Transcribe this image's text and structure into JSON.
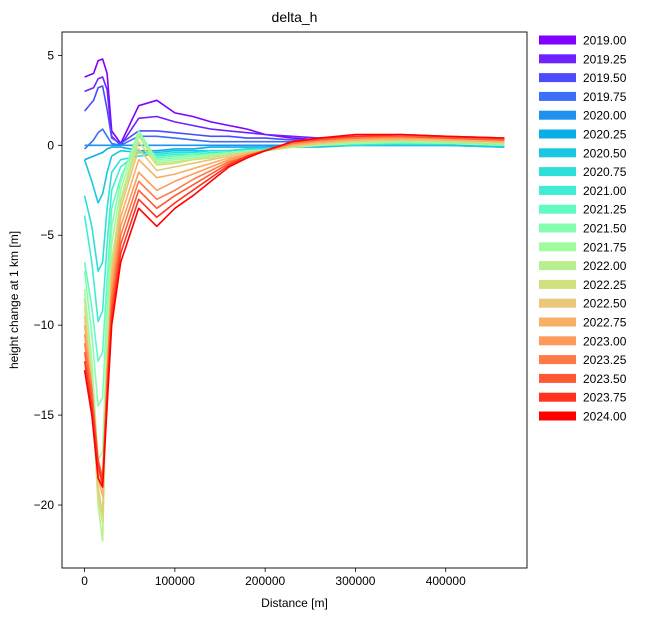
{
  "chart_data": {
    "type": "line",
    "title": "delta_h",
    "xlabel": "Distance [m]",
    "ylabel": "height change at 1 km [m]",
    "xlim": [
      -25000,
      490000
    ],
    "ylim": [
      -23.5,
      6.3
    ],
    "xticks": [
      0,
      100000,
      200000,
      300000,
      400000
    ],
    "xtick_labels": [
      "0",
      "100000",
      "200000",
      "300000",
      "400000"
    ],
    "yticks": [
      5,
      0,
      -5,
      -10,
      -15,
      -20
    ],
    "ytick_labels": [
      "5",
      "0",
      "−5",
      "−10",
      "−15",
      "−20"
    ],
    "grid": false,
    "legend_position": "outside-right",
    "series": [
      {
        "name": "2019.00",
        "color": "#8000ff",
        "x": [
          0,
          10000,
          15000,
          20000,
          25000,
          30000,
          40000,
          60000,
          80000,
          100000,
          120000,
          140000,
          160000,
          180000,
          200000,
          230000,
          260000,
          300000,
          350000,
          400000,
          465000
        ],
        "y": [
          3.8,
          4.0,
          4.7,
          4.8,
          4.0,
          0.8,
          0.1,
          2.2,
          2.5,
          1.8,
          1.6,
          1.3,
          1.1,
          0.9,
          0.6,
          0.4,
          0.3,
          0.4,
          0.5,
          0.4,
          0.3
        ]
      },
      {
        "name": "2019.25",
        "color": "#6e22fe",
        "x": [
          0,
          10000,
          15000,
          20000,
          25000,
          30000,
          40000,
          60000,
          80000,
          100000,
          120000,
          140000,
          160000,
          180000,
          200000,
          230000,
          260000,
          300000,
          350000,
          400000,
          465000
        ],
        "y": [
          3.0,
          3.2,
          3.7,
          3.8,
          3.1,
          0.5,
          0.0,
          1.5,
          1.6,
          1.3,
          1.1,
          0.9,
          0.8,
          0.7,
          0.6,
          0.5,
          0.4,
          0.4,
          0.5,
          0.4,
          0.3
        ]
      },
      {
        "name": "2019.50",
        "color": "#4c4cfd",
        "x": [
          0,
          10000,
          15000,
          20000,
          25000,
          30000,
          40000,
          60000,
          80000,
          100000,
          120000,
          140000,
          160000,
          180000,
          200000,
          230000,
          260000,
          300000,
          350000,
          400000,
          465000
        ],
        "y": [
          1.9,
          2.5,
          3.2,
          3.3,
          2.0,
          0.4,
          0.1,
          0.8,
          0.8,
          0.7,
          0.6,
          0.5,
          0.5,
          0.4,
          0.4,
          0.3,
          0.3,
          0.3,
          0.3,
          0.3,
          0.2
        ]
      },
      {
        "name": "2019.75",
        "color": "#3a70f7",
        "x": [
          0,
          10000,
          15000,
          20000,
          25000,
          30000,
          40000,
          60000,
          80000,
          100000,
          120000,
          140000,
          160000,
          180000,
          200000,
          230000,
          260000,
          300000,
          350000,
          400000,
          465000
        ],
        "y": [
          -0.2,
          0.3,
          0.7,
          0.9,
          0.5,
          0.1,
          0.0,
          0.5,
          0.5,
          0.4,
          0.3,
          0.2,
          0.2,
          0.2,
          0.2,
          0.2,
          0.2,
          0.2,
          0.2,
          0.2,
          0.1
        ]
      },
      {
        "name": "2020.00",
        "color": "#1e90f0",
        "x": [
          0,
          10000,
          15000,
          20000,
          25000,
          30000,
          40000,
          60000,
          80000,
          100000,
          120000,
          140000,
          160000,
          180000,
          200000,
          230000,
          260000,
          300000,
          350000,
          400000,
          465000
        ],
        "y": [
          0.0,
          0.0,
          0.0,
          0.0,
          0.0,
          0.0,
          0.0,
          0.0,
          0.0,
          0.0,
          0.0,
          0.0,
          0.0,
          0.0,
          0.0,
          0.0,
          0.0,
          0.0,
          0.0,
          0.0,
          0.0
        ]
      },
      {
        "name": "2020.25",
        "color": "#0aaee6",
        "x": [
          0,
          10000,
          15000,
          20000,
          25000,
          30000,
          40000,
          60000,
          80000,
          100000,
          120000,
          140000,
          160000,
          180000,
          200000,
          230000,
          260000,
          300000,
          350000,
          400000,
          465000
        ],
        "y": [
          -0.8,
          -0.6,
          -0.5,
          -0.4,
          -0.2,
          -0.1,
          -0.1,
          -0.3,
          -0.3,
          -0.2,
          -0.2,
          -0.1,
          -0.1,
          -0.1,
          -0.1,
          0.0,
          0.0,
          0.0,
          0.0,
          0.0,
          -0.1
        ]
      },
      {
        "name": "2020.50",
        "color": "#18c8e0",
        "x": [
          0,
          8000,
          15000,
          20000,
          25000,
          30000,
          40000,
          60000,
          80000,
          100000,
          120000,
          140000,
          160000,
          180000,
          200000,
          230000,
          260000,
          300000,
          350000,
          400000,
          465000
        ],
        "y": [
          -0.8,
          -2.0,
          -3.2,
          -2.7,
          -1.5,
          -0.6,
          -0.3,
          -0.4,
          -0.4,
          -0.3,
          -0.3,
          -0.3,
          -0.3,
          -0.2,
          -0.2,
          -0.1,
          -0.1,
          0.0,
          0.0,
          0.0,
          -0.1
        ]
      },
      {
        "name": "2020.75",
        "color": "#2ce0d8",
        "x": [
          0,
          8000,
          15000,
          20000,
          25000,
          30000,
          40000,
          60000,
          80000,
          100000,
          120000,
          140000,
          160000,
          180000,
          200000,
          230000,
          260000,
          300000,
          350000,
          400000,
          465000
        ],
        "y": [
          -2.8,
          -4.5,
          -7.0,
          -6.5,
          -3.5,
          -1.5,
          -0.8,
          -0.6,
          -0.5,
          -0.4,
          -0.4,
          -0.3,
          -0.3,
          -0.2,
          -0.2,
          -0.1,
          0.0,
          0.0,
          0.1,
          0.1,
          0.0
        ]
      },
      {
        "name": "2021.00",
        "color": "#40ecd4",
        "x": [
          0,
          8000,
          15000,
          20000,
          25000,
          30000,
          40000,
          60000,
          80000,
          100000,
          120000,
          140000,
          160000,
          180000,
          200000,
          230000,
          260000,
          300000,
          350000,
          400000,
          465000
        ],
        "y": [
          -3.9,
          -6.5,
          -9.8,
          -9.2,
          -5.5,
          -2.5,
          -1.2,
          -0.4,
          -0.6,
          -0.5,
          -0.5,
          -0.4,
          -0.4,
          -0.3,
          -0.2,
          -0.1,
          0.0,
          0.1,
          0.1,
          0.1,
          0.0
        ]
      },
      {
        "name": "2021.25",
        "color": "#62fac0",
        "x": [
          0,
          8000,
          15000,
          20000,
          25000,
          30000,
          40000,
          60000,
          80000,
          100000,
          120000,
          140000,
          160000,
          180000,
          200000,
          230000,
          260000,
          300000,
          350000,
          400000,
          465000
        ],
        "y": [
          -6.5,
          -9.0,
          -12.0,
          -11.5,
          -7.5,
          -3.5,
          -1.8,
          0.5,
          -0.7,
          -0.6,
          -0.5,
          -0.5,
          -0.4,
          -0.3,
          -0.3,
          -0.1,
          0.0,
          0.1,
          0.1,
          0.1,
          0.0
        ]
      },
      {
        "name": "2021.50",
        "color": "#86feb0",
        "x": [
          0,
          8000,
          15000,
          20000,
          25000,
          30000,
          40000,
          60000,
          80000,
          100000,
          120000,
          140000,
          160000,
          180000,
          200000,
          230000,
          260000,
          300000,
          350000,
          400000,
          465000
        ],
        "y": [
          -7.0,
          -10.5,
          -14.5,
          -14.0,
          -9.0,
          -4.5,
          -2.0,
          0.8,
          -0.8,
          -0.7,
          -0.6,
          -0.5,
          -0.4,
          -0.3,
          -0.3,
          -0.1,
          0.0,
          0.1,
          0.2,
          0.1,
          0.0
        ]
      },
      {
        "name": "2021.75",
        "color": "#a0fc9e",
        "x": [
          0,
          8000,
          15000,
          20000,
          25000,
          30000,
          40000,
          60000,
          80000,
          100000,
          120000,
          140000,
          160000,
          180000,
          200000,
          230000,
          260000,
          300000,
          350000,
          400000,
          465000
        ],
        "y": [
          -8.0,
          -12.0,
          -17.5,
          -17.0,
          -10.5,
          -5.5,
          -2.5,
          0.7,
          -0.9,
          -0.8,
          -0.7,
          -0.6,
          -0.5,
          -0.4,
          -0.3,
          -0.1,
          0.0,
          0.1,
          0.2,
          0.2,
          0.1
        ]
      },
      {
        "name": "2022.00",
        "color": "#b8f090",
        "x": [
          0,
          8000,
          15000,
          20000,
          25000,
          30000,
          40000,
          60000,
          80000,
          100000,
          120000,
          140000,
          160000,
          180000,
          200000,
          230000,
          260000,
          300000,
          350000,
          400000,
          465000
        ],
        "y": [
          -9.0,
          -13.5,
          -20.0,
          -22.0,
          -12.5,
          -6.5,
          -3.0,
          0.5,
          -1.0,
          -0.9,
          -0.8,
          -0.6,
          -0.5,
          -0.4,
          -0.3,
          -0.1,
          0.0,
          0.2,
          0.2,
          0.2,
          0.1
        ]
      },
      {
        "name": "2022.25",
        "color": "#d0e27f",
        "x": [
          0,
          8000,
          15000,
          20000,
          25000,
          30000,
          40000,
          60000,
          80000,
          100000,
          120000,
          140000,
          160000,
          180000,
          200000,
          230000,
          260000,
          300000,
          350000,
          400000,
          465000
        ],
        "y": [
          -8.5,
          -13.0,
          -19.5,
          -21.0,
          -12.0,
          -6.5,
          -3.2,
          0.2,
          -1.1,
          -1.0,
          -0.8,
          -0.7,
          -0.5,
          -0.4,
          -0.3,
          -0.1,
          0.1,
          0.2,
          0.3,
          0.2,
          0.1
        ]
      },
      {
        "name": "2022.50",
        "color": "#e6c878",
        "x": [
          0,
          8000,
          15000,
          20000,
          25000,
          30000,
          40000,
          60000,
          80000,
          100000,
          120000,
          140000,
          160000,
          180000,
          200000,
          230000,
          260000,
          300000,
          350000,
          400000,
          465000
        ],
        "y": [
          -9.5,
          -13.5,
          -19.0,
          -20.5,
          -12.5,
          -7.0,
          -3.5,
          -0.2,
          -1.4,
          -1.2,
          -1.0,
          -0.8,
          -0.6,
          -0.4,
          -0.3,
          0.0,
          0.1,
          0.3,
          0.3,
          0.3,
          0.2
        ]
      },
      {
        "name": "2022.75",
        "color": "#f8b064",
        "x": [
          0,
          8000,
          15000,
          20000,
          25000,
          30000,
          40000,
          60000,
          80000,
          100000,
          120000,
          140000,
          160000,
          180000,
          200000,
          230000,
          260000,
          300000,
          350000,
          400000,
          465000
        ],
        "y": [
          -10.0,
          -13.5,
          -18.5,
          -19.5,
          -12.5,
          -7.5,
          -4.0,
          -0.8,
          -1.8,
          -1.6,
          -1.3,
          -1.0,
          -0.7,
          -0.5,
          -0.3,
          0.0,
          0.2,
          0.3,
          0.4,
          0.3,
          0.2
        ]
      },
      {
        "name": "2023.00",
        "color": "#ff9a58",
        "x": [
          0,
          8000,
          15000,
          20000,
          25000,
          30000,
          40000,
          60000,
          80000,
          100000,
          120000,
          140000,
          160000,
          180000,
          200000,
          230000,
          260000,
          300000,
          350000,
          400000,
          465000
        ],
        "y": [
          -10.5,
          -13.5,
          -18.0,
          -19.0,
          -12.8,
          -8.0,
          -4.5,
          -1.5,
          -2.5,
          -2.0,
          -1.6,
          -1.2,
          -0.8,
          -0.5,
          -0.3,
          0.1,
          0.2,
          0.4,
          0.4,
          0.4,
          0.3
        ]
      },
      {
        "name": "2023.25",
        "color": "#ff7a44",
        "x": [
          0,
          8000,
          15000,
          20000,
          25000,
          30000,
          40000,
          60000,
          80000,
          100000,
          120000,
          140000,
          160000,
          180000,
          200000,
          230000,
          260000,
          300000,
          350000,
          400000,
          465000
        ],
        "y": [
          -11.0,
          -13.5,
          -17.5,
          -18.5,
          -13.0,
          -8.5,
          -5.0,
          -2.0,
          -3.0,
          -2.5,
          -1.9,
          -1.4,
          -0.9,
          -0.6,
          -0.3,
          0.1,
          0.3,
          0.4,
          0.5,
          0.4,
          0.3
        ]
      },
      {
        "name": "2023.50",
        "color": "#ff5834",
        "x": [
          0,
          8000,
          15000,
          20000,
          25000,
          30000,
          40000,
          60000,
          80000,
          100000,
          120000,
          140000,
          160000,
          180000,
          200000,
          230000,
          260000,
          300000,
          350000,
          400000,
          465000
        ],
        "y": [
          -11.5,
          -14.0,
          -17.5,
          -18.5,
          -13.5,
          -9.0,
          -5.5,
          -2.5,
          -3.5,
          -2.8,
          -2.2,
          -1.6,
          -1.0,
          -0.6,
          -0.3,
          0.2,
          0.3,
          0.5,
          0.5,
          0.4,
          0.3
        ]
      },
      {
        "name": "2023.75",
        "color": "#ff3220",
        "x": [
          0,
          8000,
          15000,
          20000,
          25000,
          30000,
          40000,
          60000,
          80000,
          100000,
          120000,
          140000,
          160000,
          180000,
          200000,
          230000,
          260000,
          300000,
          350000,
          400000,
          465000
        ],
        "y": [
          -12.0,
          -14.5,
          -17.8,
          -18.8,
          -14.0,
          -9.5,
          -6.0,
          -3.0,
          -4.0,
          -3.2,
          -2.5,
          -1.8,
          -1.1,
          -0.6,
          -0.3,
          0.2,
          0.4,
          0.5,
          0.6,
          0.5,
          0.4
        ]
      },
      {
        "name": "2024.00",
        "color": "#ff0000",
        "x": [
          0,
          8000,
          15000,
          20000,
          25000,
          30000,
          40000,
          60000,
          80000,
          100000,
          120000,
          140000,
          160000,
          180000,
          200000,
          230000,
          260000,
          300000,
          350000,
          400000,
          465000
        ],
        "y": [
          -12.5,
          -15.0,
          -18.5,
          -19.0,
          -14.5,
          -10.0,
          -6.5,
          -3.5,
          -4.5,
          -3.5,
          -2.8,
          -2.0,
          -1.2,
          -0.7,
          -0.3,
          0.2,
          0.4,
          0.6,
          0.6,
          0.5,
          0.4
        ]
      }
    ]
  }
}
